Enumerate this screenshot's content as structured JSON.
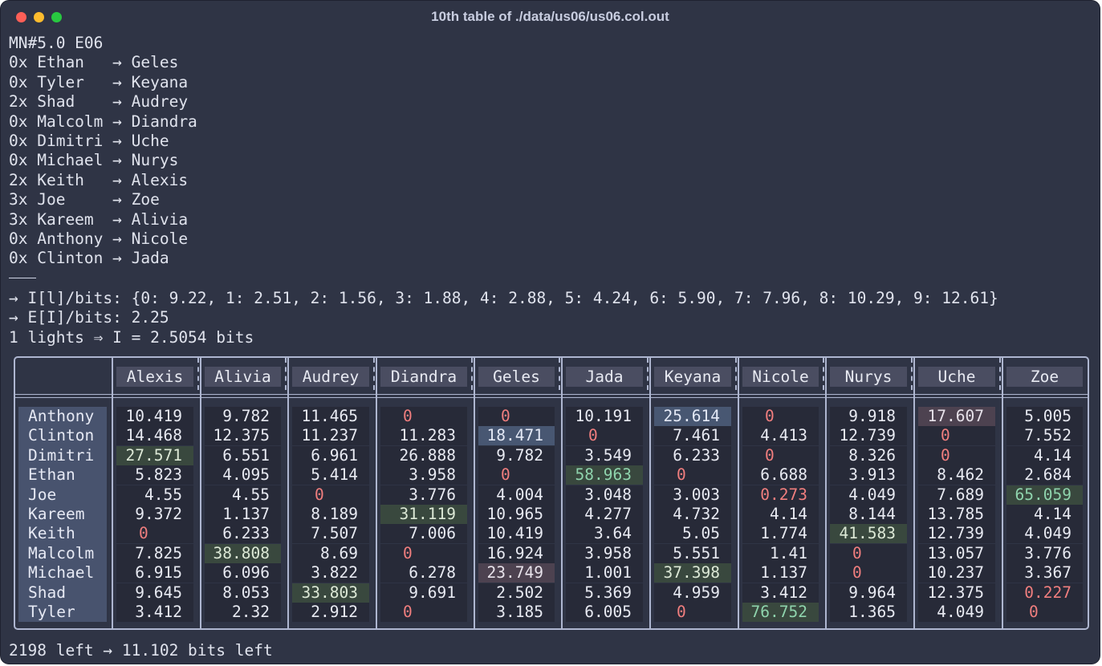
{
  "window": {
    "title": "10th table of ./data/us06/us06.col.out"
  },
  "header_line": "MN#5.0 E06",
  "pair_lines": [
    "0x Ethan   → Geles",
    "0x Tyler   → Keyana",
    "2x Shad    → Audrey",
    "0x Malcolm → Diandra",
    "0x Dimitri → Uche",
    "0x Michael → Nurys",
    "2x Keith   → Alexis",
    "3x Joe     → Zoe",
    "3x Kareem  → Alivia",
    "0x Anthony → Nicole",
    "0x Clinton → Jada"
  ],
  "info_lines": [
    "→ I[l]/bits: {0: 9.22, 1: 2.51, 2: 1.56, 3: 1.88, 4: 2.88, 5: 4.24, 6: 5.90, 7: 7.96, 8: 10.29, 9: 12.61}",
    "→ E[I]/bits: 2.25",
    "1 lights ⇒ I = 2.5054 bits"
  ],
  "table": {
    "columns": [
      "Alexis",
      "Alivia",
      "Audrey",
      "Diandra",
      "Geles",
      "Jada",
      "Keyana",
      "Nicole",
      "Nurys",
      "Uche",
      "Zoe"
    ],
    "rows": [
      {
        "name": "Anthony",
        "values": [
          "10.419",
          "9.782",
          "11.465",
          "0",
          "0",
          "10.191",
          "25.614",
          "0",
          "9.918",
          "17.607",
          "5.005"
        ],
        "styles": [
          "",
          "",
          "",
          "zero",
          "zero",
          "",
          "blue",
          "zero",
          "",
          "pink",
          ""
        ]
      },
      {
        "name": "Clinton",
        "values": [
          "14.468",
          "12.375",
          "11.237",
          "11.283",
          "18.471",
          "0",
          "7.461",
          "4.413",
          "12.739",
          "0",
          "7.552"
        ],
        "styles": [
          "",
          "",
          "",
          "",
          "blue",
          "zero",
          "",
          "",
          "",
          "zero",
          ""
        ]
      },
      {
        "name": "Dimitri",
        "values": [
          "27.571",
          "6.551",
          "6.961",
          "26.888",
          "9.782",
          "3.549",
          "6.233",
          "0",
          "8.326",
          "0",
          "4.14"
        ],
        "styles": [
          "green",
          "",
          "",
          "",
          "",
          "",
          "",
          "zero",
          "",
          "zero",
          ""
        ]
      },
      {
        "name": "Ethan",
        "values": [
          "5.823",
          "4.095",
          "5.414",
          "3.958",
          "0",
          "58.963",
          "0",
          "6.688",
          "3.913",
          "8.462",
          "2.684"
        ],
        "styles": [
          "",
          "",
          "",
          "",
          "zero",
          "green bright",
          "zero",
          "",
          "",
          "",
          ""
        ]
      },
      {
        "name": "Joe",
        "values": [
          "4.55",
          "4.55",
          "0",
          "3.776",
          "4.004",
          "3.048",
          "3.003",
          "0.273",
          "4.049",
          "7.689",
          "65.059"
        ],
        "styles": [
          "",
          "",
          "zero",
          "",
          "",
          "",
          "",
          "red",
          "",
          "",
          "green bright"
        ]
      },
      {
        "name": "Kareem",
        "values": [
          "9.372",
          "1.137",
          "8.189",
          "31.119",
          "10.965",
          "4.277",
          "4.732",
          "4.14",
          "8.144",
          "13.785",
          "4.14"
        ],
        "styles": [
          "",
          "",
          "",
          "green",
          "",
          "",
          "",
          "",
          "",
          "",
          ""
        ]
      },
      {
        "name": "Keith",
        "values": [
          "0",
          "6.233",
          "7.507",
          "7.006",
          "10.419",
          "3.64",
          "5.05",
          "1.774",
          "41.583",
          "12.739",
          "4.049"
        ],
        "styles": [
          "zero",
          "",
          "",
          "",
          "",
          "",
          "",
          "",
          "green",
          "",
          ""
        ]
      },
      {
        "name": "Malcolm",
        "values": [
          "7.825",
          "38.808",
          "8.69",
          "0",
          "16.924",
          "3.958",
          "5.551",
          "1.41",
          "0",
          "13.057",
          "3.776"
        ],
        "styles": [
          "",
          "green",
          "",
          "zero",
          "",
          "",
          "",
          "",
          "zero",
          "",
          ""
        ]
      },
      {
        "name": "Michael",
        "values": [
          "6.915",
          "6.096",
          "3.822",
          "6.278",
          "23.749",
          "1.001",
          "37.398",
          "1.137",
          "0",
          "10.237",
          "3.367"
        ],
        "styles": [
          "",
          "",
          "",
          "",
          "pink",
          "",
          "green",
          "",
          "zero",
          "",
          ""
        ]
      },
      {
        "name": "Shad",
        "values": [
          "9.645",
          "8.053",
          "33.803",
          "9.691",
          "2.502",
          "5.369",
          "4.959",
          "3.412",
          "9.964",
          "12.375",
          "0.227"
        ],
        "styles": [
          "",
          "",
          "green",
          "",
          "",
          "",
          "",
          "",
          "",
          "",
          "red"
        ]
      },
      {
        "name": "Tyler",
        "values": [
          "3.412",
          "2.32",
          "2.912",
          "0",
          "3.185",
          "6.005",
          "0",
          "76.752",
          "1.365",
          "4.049",
          "0"
        ],
        "styles": [
          "",
          "",
          "",
          "zero",
          "",
          "",
          "zero",
          "green bright",
          "",
          "",
          "zero"
        ]
      }
    ]
  },
  "footer": "2198 left → 11.102 bits left"
}
